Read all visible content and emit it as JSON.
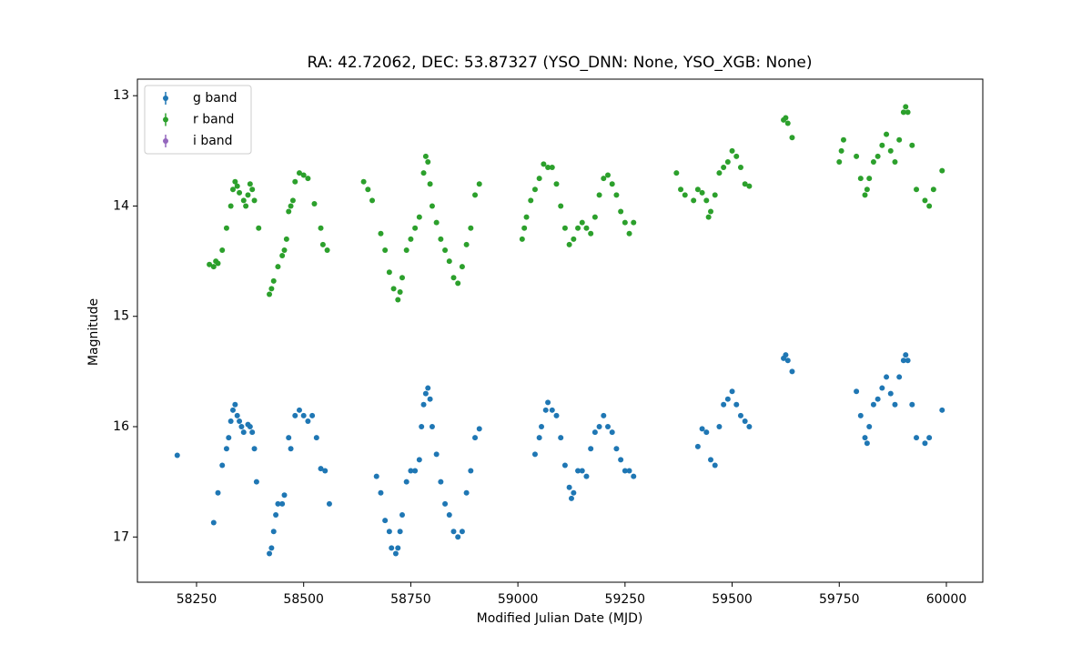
{
  "chart_data": {
    "type": "scatter",
    "title": "RA: 42.72062, DEC: 53.87327 (YSO_DNN: None, YSO_XGB: None)",
    "x_label": "Modified Julian Date (MJD)",
    "y_label": "Magnitude",
    "xlim": [
      58112,
      60085
    ],
    "ylim": [
      17.41,
      12.85
    ],
    "xticks": [
      58250,
      58500,
      58750,
      59000,
      59250,
      59500,
      59750,
      60000
    ],
    "yticks": [
      13,
      14,
      15,
      16,
      17
    ],
    "legend": "upper left",
    "series": [
      {
        "name": "g band",
        "color": "#1f77b4",
        "x": [
          58205,
          58290,
          58300,
          58310,
          58320,
          58325,
          58330,
          58335,
          58340,
          58345,
          58350,
          58355,
          58360,
          58370,
          58375,
          58380,
          58385,
          58390,
          58420,
          58425,
          58430,
          58435,
          58440,
          58450,
          58455,
          58465,
          58470,
          58480,
          58490,
          58500,
          58510,
          58520,
          58530,
          58540,
          58550,
          58560,
          58670,
          58680,
          58690,
          58700,
          58705,
          58715,
          58720,
          58725,
          58730,
          58740,
          58750,
          58760,
          58770,
          58775,
          58780,
          58785,
          58790,
          58795,
          58800,
          58810,
          58820,
          58830,
          58840,
          58850,
          58860,
          58870,
          58880,
          58890,
          58900,
          58910,
          59040,
          59050,
          59055,
          59065,
          59070,
          59080,
          59090,
          59100,
          59110,
          59120,
          59125,
          59130,
          59140,
          59150,
          59160,
          59170,
          59180,
          59190,
          59200,
          59210,
          59220,
          59230,
          59240,
          59250,
          59260,
          59270,
          59420,
          59430,
          59440,
          59450,
          59460,
          59470,
          59480,
          59490,
          59500,
          59510,
          59520,
          59530,
          59540,
          59620,
          59625,
          59630,
          59640,
          59790,
          59800,
          59810,
          59815,
          59820,
          59830,
          59840,
          59850,
          59860,
          59870,
          59880,
          59890,
          59900,
          59905,
          59910,
          59920,
          59930,
          59950,
          59960,
          59990
        ],
        "values": [
          16.26,
          16.87,
          16.6,
          16.35,
          16.2,
          16.1,
          15.95,
          15.85,
          15.8,
          15.9,
          15.95,
          16.0,
          16.05,
          15.98,
          16.0,
          16.05,
          16.2,
          16.5,
          17.15,
          17.1,
          16.95,
          16.8,
          16.7,
          16.7,
          16.62,
          16.1,
          16.2,
          15.9,
          15.85,
          15.9,
          15.95,
          15.9,
          16.1,
          16.38,
          16.4,
          16.7,
          16.45,
          16.6,
          16.85,
          16.95,
          17.1,
          17.15,
          17.1,
          16.95,
          16.8,
          16.5,
          16.4,
          16.4,
          16.3,
          16.0,
          15.8,
          15.7,
          15.65,
          15.75,
          16.0,
          16.25,
          16.5,
          16.7,
          16.8,
          16.95,
          17.0,
          16.95,
          16.6,
          16.4,
          16.1,
          16.02,
          16.25,
          16.1,
          16.0,
          15.85,
          15.78,
          15.85,
          15.9,
          16.1,
          16.35,
          16.55,
          16.65,
          16.6,
          16.4,
          16.4,
          16.45,
          16.2,
          16.05,
          16.0,
          15.9,
          16.0,
          16.05,
          16.2,
          16.3,
          16.4,
          16.4,
          16.45,
          16.18,
          16.02,
          16.05,
          16.3,
          16.35,
          16.0,
          15.8,
          15.75,
          15.68,
          15.8,
          15.9,
          15.95,
          16.0,
          15.38,
          15.35,
          15.4,
          15.5,
          15.68,
          15.9,
          16.1,
          16.15,
          16.0,
          15.8,
          15.75,
          15.65,
          15.55,
          15.7,
          15.8,
          15.55,
          15.4,
          15.35,
          15.4,
          15.8,
          16.1,
          16.15,
          16.1,
          15.85
        ]
      },
      {
        "name": "r band",
        "color": "#2ca02c",
        "x": [
          58280,
          58290,
          58295,
          58300,
          58310,
          58320,
          58330,
          58335,
          58340,
          58345,
          58350,
          58360,
          58365,
          58370,
          58375,
          58380,
          58385,
          58395,
          58420,
          58425,
          58430,
          58440,
          58450,
          58455,
          58460,
          58465,
          58470,
          58475,
          58480,
          58490,
          58500,
          58510,
          58525,
          58540,
          58545,
          58555,
          58640,
          58650,
          58660,
          58680,
          58690,
          58700,
          58710,
          58720,
          58725,
          58730,
          58740,
          58750,
          58760,
          58770,
          58780,
          58785,
          58790,
          58795,
          58800,
          58810,
          58820,
          58830,
          58840,
          58850,
          58860,
          58870,
          58880,
          58890,
          58900,
          58910,
          59010,
          59015,
          59020,
          59030,
          59040,
          59050,
          59060,
          59070,
          59080,
          59090,
          59100,
          59110,
          59120,
          59130,
          59140,
          59150,
          59160,
          59170,
          59180,
          59190,
          59200,
          59210,
          59220,
          59230,
          59240,
          59250,
          59260,
          59270,
          59370,
          59380,
          59390,
          59410,
          59420,
          59430,
          59440,
          59445,
          59450,
          59460,
          59470,
          59480,
          59490,
          59500,
          59510,
          59520,
          59530,
          59540,
          59620,
          59625,
          59630,
          59640,
          59750,
          59755,
          59760,
          59790,
          59800,
          59810,
          59815,
          59820,
          59830,
          59840,
          59850,
          59860,
          59870,
          59880,
          59890,
          59900,
          59905,
          59910,
          59920,
          59930,
          59950,
          59960,
          59970,
          59990
        ],
        "values": [
          14.53,
          14.55,
          14.5,
          14.52,
          14.4,
          14.2,
          14.0,
          13.85,
          13.78,
          13.82,
          13.88,
          13.95,
          14.0,
          13.9,
          13.8,
          13.85,
          13.95,
          14.2,
          14.8,
          14.75,
          14.68,
          14.55,
          14.45,
          14.4,
          14.3,
          14.05,
          14.0,
          13.95,
          13.78,
          13.7,
          13.72,
          13.75,
          13.98,
          14.2,
          14.35,
          14.4,
          13.78,
          13.85,
          13.95,
          14.25,
          14.4,
          14.6,
          14.75,
          14.85,
          14.78,
          14.65,
          14.4,
          14.3,
          14.2,
          14.1,
          13.7,
          13.55,
          13.6,
          13.8,
          14.0,
          14.15,
          14.3,
          14.4,
          14.5,
          14.65,
          14.7,
          14.55,
          14.35,
          14.2,
          13.9,
          13.8,
          14.3,
          14.2,
          14.1,
          13.95,
          13.85,
          13.75,
          13.62,
          13.65,
          13.65,
          13.8,
          14.0,
          14.2,
          14.35,
          14.3,
          14.2,
          14.15,
          14.2,
          14.25,
          14.1,
          13.9,
          13.75,
          13.72,
          13.8,
          13.9,
          14.05,
          14.15,
          14.25,
          14.15,
          13.7,
          13.85,
          13.9,
          13.95,
          13.85,
          13.88,
          13.95,
          14.1,
          14.05,
          13.9,
          13.7,
          13.65,
          13.6,
          13.5,
          13.55,
          13.65,
          13.8,
          13.82,
          13.22,
          13.2,
          13.25,
          13.38,
          13.6,
          13.5,
          13.4,
          13.55,
          13.75,
          13.9,
          13.85,
          13.75,
          13.6,
          13.55,
          13.45,
          13.35,
          13.5,
          13.6,
          13.4,
          13.15,
          13.1,
          13.15,
          13.45,
          13.85,
          13.95,
          14.0,
          13.85,
          13.68
        ]
      },
      {
        "name": "i band",
        "color": "#9467bd",
        "x": [],
        "values": []
      }
    ]
  }
}
